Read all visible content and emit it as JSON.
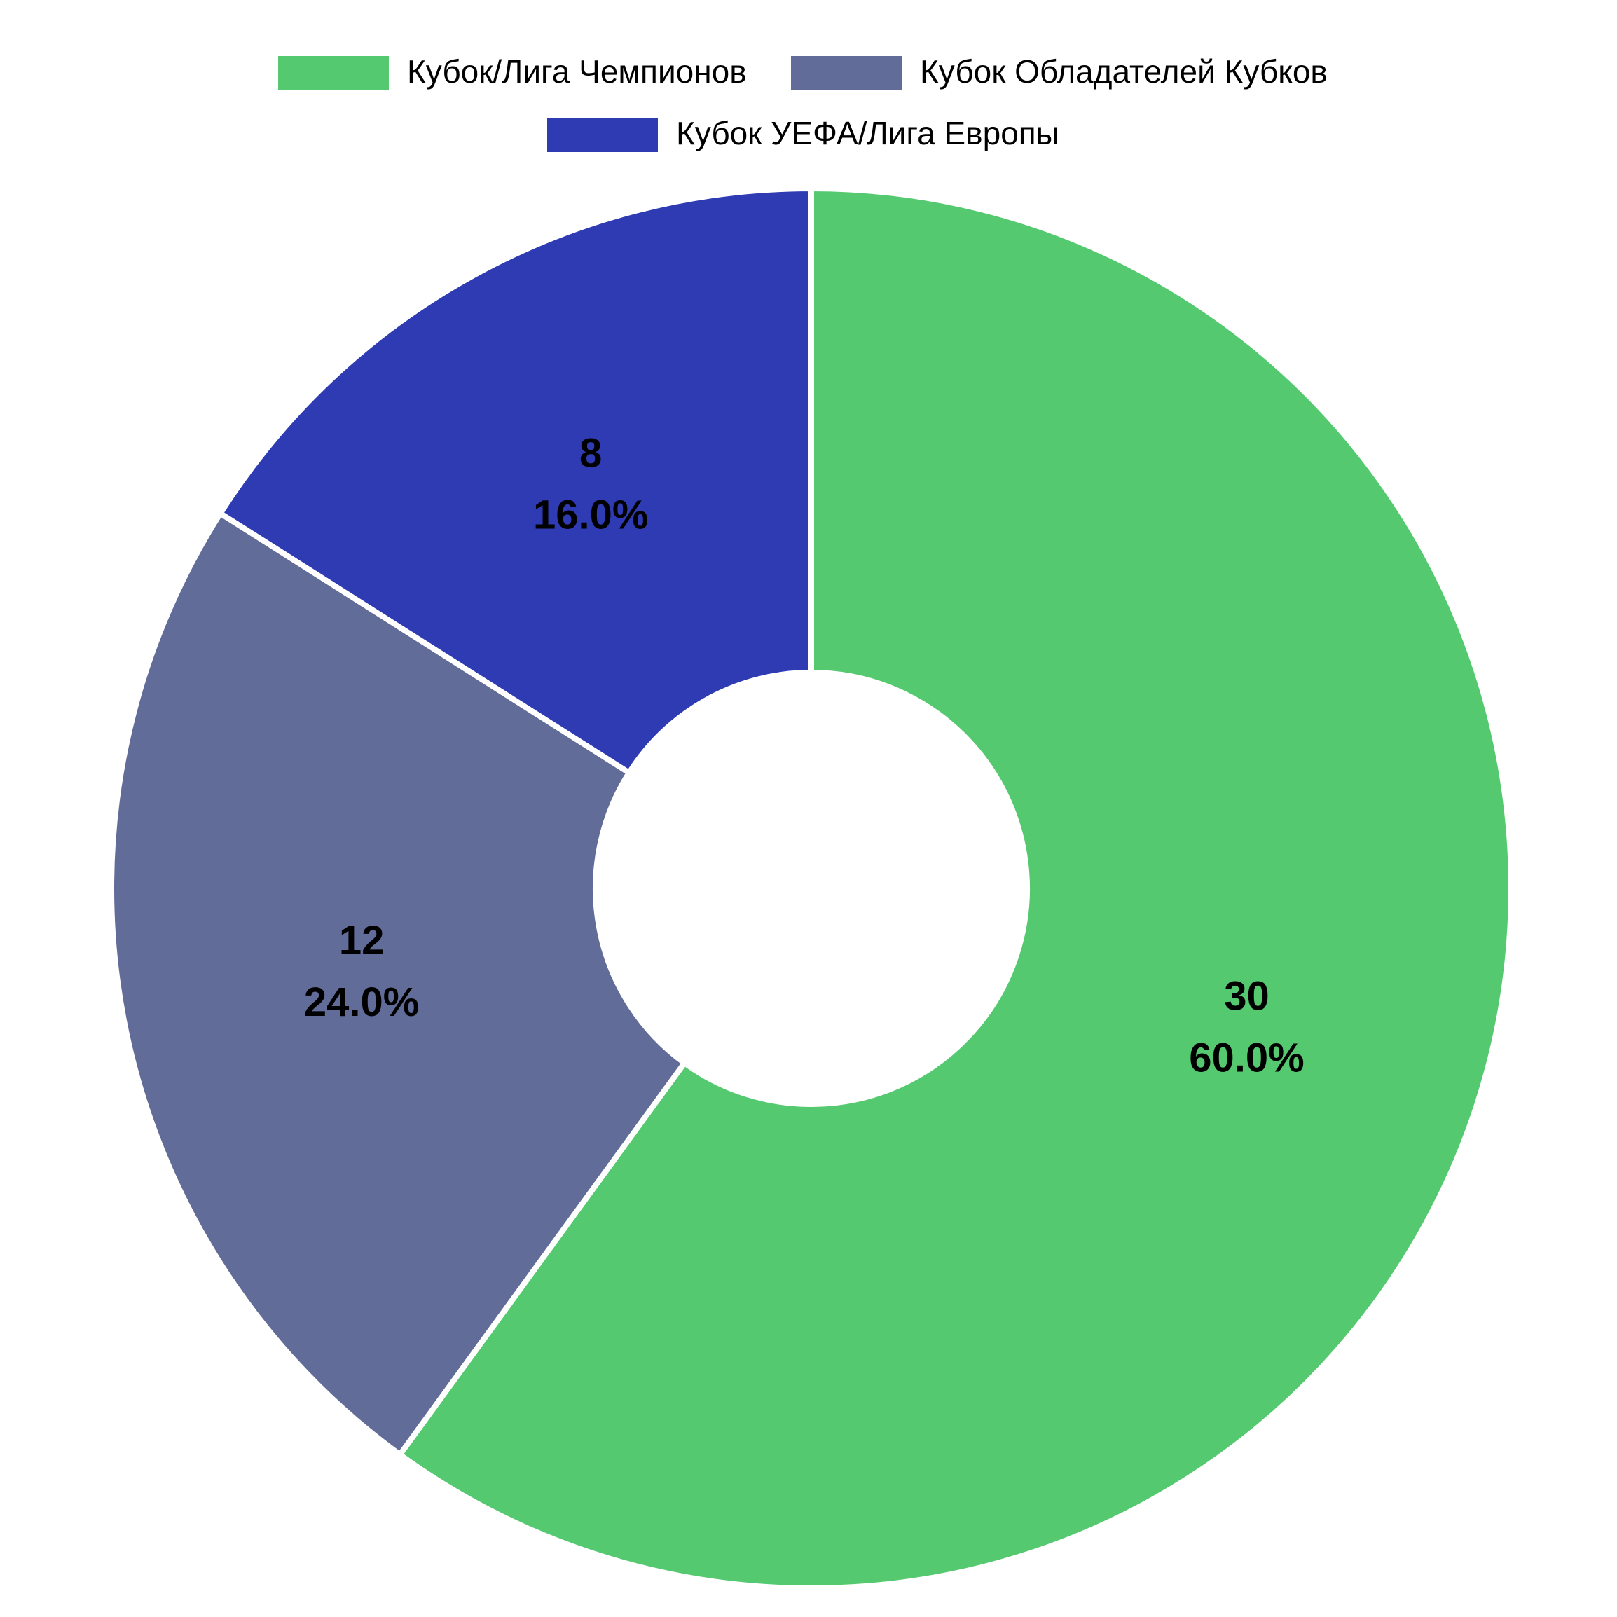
{
  "chart_data": {
    "type": "donut",
    "categories": [
      "Кубок/Лига Чемпионов",
      "Кубок Обладателей Кубков",
      "Кубок УЕФА/Лига Европы"
    ],
    "values": [
      30,
      12,
      8
    ],
    "percentages": [
      60,
      24,
      16
    ],
    "percentage_labels": [
      "60.0%",
      "24.0%",
      "16.0%"
    ],
    "colors": [
      "#55c96f",
      "#626c98",
      "#2e3bb3"
    ],
    "legend": "top"
  }
}
